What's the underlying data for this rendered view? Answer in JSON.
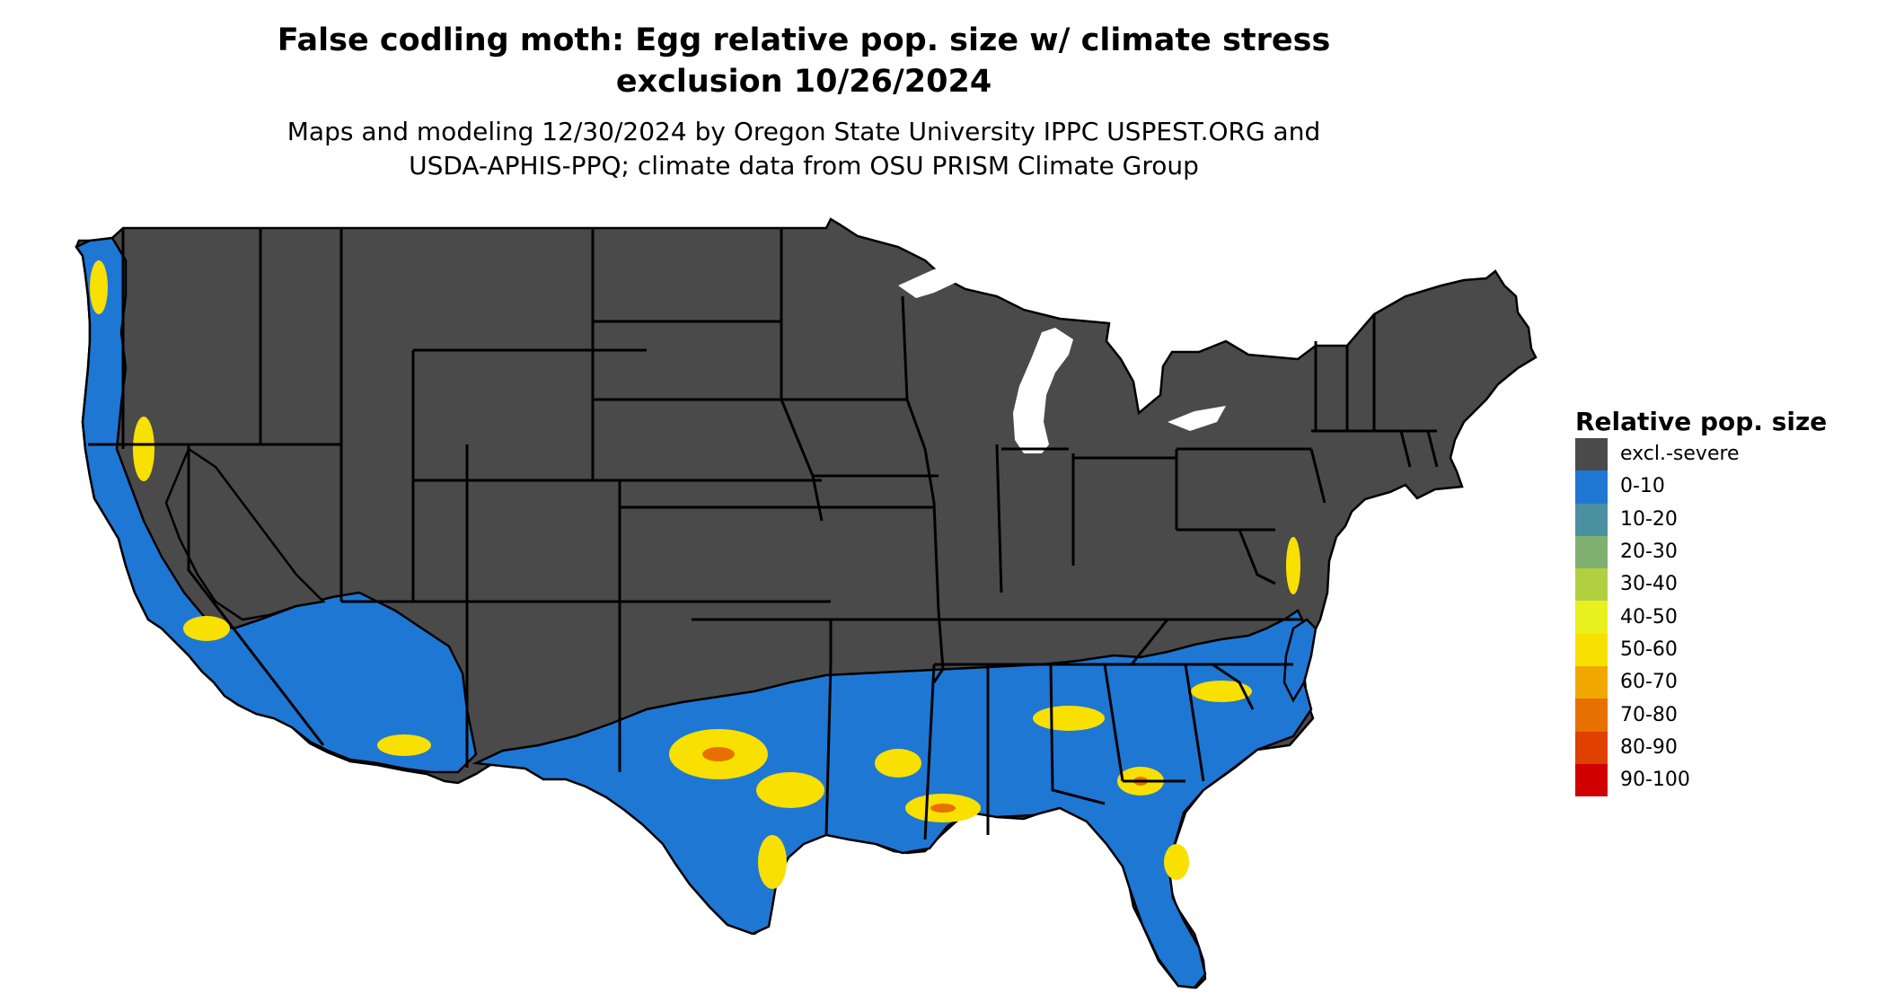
{
  "title": {
    "line1": "False codling moth: Egg relative pop. size w/ climate stress",
    "line2": "exclusion 10/26/2024"
  },
  "subtitle": {
    "line1": "Maps and modeling 12/30/2024 by Oregon State University IPPC USPEST.ORG and",
    "line2": "USDA-APHIS-PPQ; climate data from OSU PRISM Climate Group"
  },
  "legend": {
    "title": "Relative pop. size",
    "items": [
      {
        "label": "excl.-severe",
        "color": "#4a4a4a"
      },
      {
        "label": "0-10",
        "color": "#1f77d4"
      },
      {
        "label": "10-20",
        "color": "#4a90a0"
      },
      {
        "label": "20-30",
        "color": "#80b070"
      },
      {
        "label": "30-40",
        "color": "#b0d040"
      },
      {
        "label": "40-50",
        "color": "#e8f020"
      },
      {
        "label": "50-60",
        "color": "#f8e000"
      },
      {
        "label": "60-70",
        "color": "#f0a800"
      },
      {
        "label": "70-80",
        "color": "#e87000"
      },
      {
        "label": "80-90",
        "color": "#e04000"
      },
      {
        "label": "90-100",
        "color": "#d00000"
      }
    ]
  },
  "map": {
    "region": "conterminous-united-states",
    "colors": {
      "excluded": "#4a4a4a",
      "low": "#1f77d4",
      "mid": "#f8e000",
      "high": "#e87000",
      "border": "#000000",
      "water": "#ffffff"
    }
  }
}
